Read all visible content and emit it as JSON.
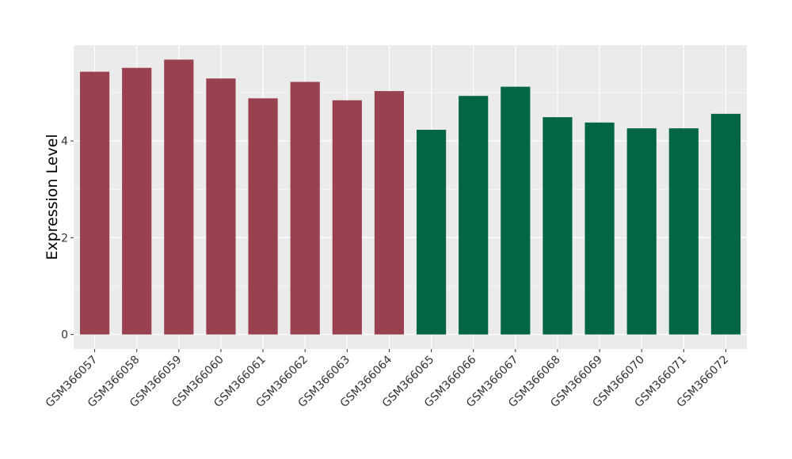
{
  "chart_data": {
    "type": "bar",
    "title": "",
    "xlabel": "",
    "ylabel": "Expression Level",
    "categories": [
      "GSM366057",
      "GSM366058",
      "GSM366059",
      "GSM366060",
      "GSM366061",
      "GSM366062",
      "GSM366063",
      "GSM366064",
      "GSM366065",
      "GSM366066",
      "GSM366067",
      "GSM366068",
      "GSM366069",
      "GSM366070",
      "GSM366071",
      "GSM366072"
    ],
    "values": [
      5.43,
      5.51,
      5.68,
      5.29,
      4.88,
      5.22,
      4.84,
      5.03,
      4.23,
      4.93,
      5.12,
      4.49,
      4.38,
      4.26,
      4.26,
      4.56
    ],
    "bar_colors": [
      "#9a4150",
      "#9a4150",
      "#9a4150",
      "#9a4150",
      "#9a4150",
      "#9a4150",
      "#9a4150",
      "#9a4150",
      "#006643",
      "#006643",
      "#006643",
      "#006643",
      "#006643",
      "#006643",
      "#006643",
      "#006643"
    ],
    "yticks": [
      0,
      2,
      4
    ],
    "ylim": [
      -0.3,
      5.98
    ],
    "grid": true,
    "legend": "none",
    "panel_background": "#ebebeb",
    "grid_color": "#ffffff"
  }
}
